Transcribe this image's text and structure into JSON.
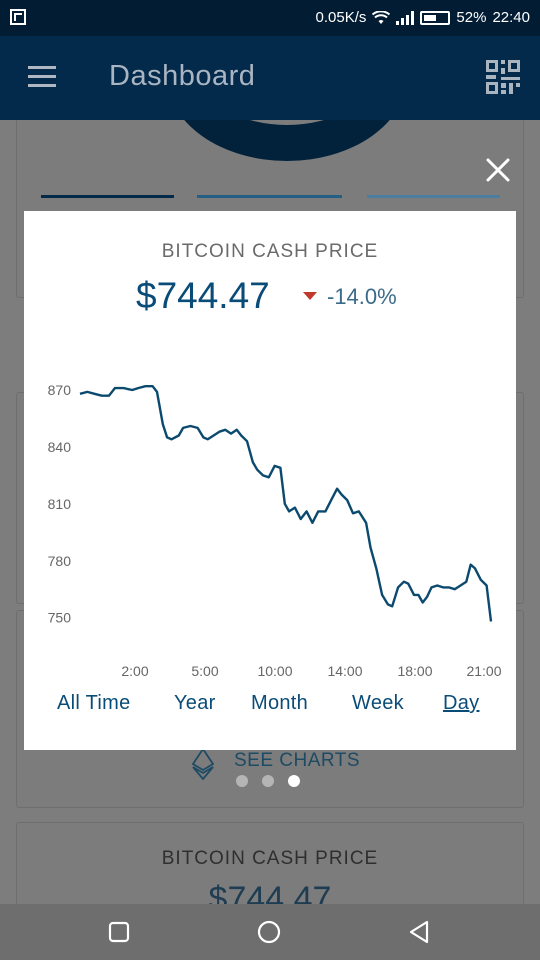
{
  "status_bar": {
    "speed": "0.05K/s",
    "battery": "52%",
    "time": "22:40",
    "battery_level": 0.52
  },
  "app_bar": {
    "title": "Dashboard"
  },
  "background": {
    "see_charts_label": "SEE CHARTS",
    "card_title": "BITCOIN CASH PRICE",
    "card_price": "$744.47",
    "pager_active_index": 2
  },
  "dialog": {
    "title": "BITCOIN CASH PRICE",
    "price": "$744.47",
    "change": "-14.0%",
    "change_direction": "down",
    "tabs": [
      {
        "label": "All Time",
        "active": false
      },
      {
        "label": "Year",
        "active": false
      },
      {
        "label": "Month",
        "active": false
      },
      {
        "label": "Week",
        "active": false
      },
      {
        "label": "Day",
        "active": true
      }
    ]
  },
  "colors": {
    "accent": "#0a4c78",
    "line": "#0b4a6e",
    "down": "#c0392b",
    "app_bar": "#032a4a"
  },
  "chart_data": {
    "type": "line",
    "x_tick_labels": [
      "2:00",
      "5:00",
      "10:00",
      "14:00",
      "18:00",
      "21:00"
    ],
    "y_tick_labels": [
      "870",
      "840",
      "810",
      "780",
      "750"
    ],
    "y_ticks": [
      870,
      840,
      810,
      780,
      750
    ],
    "ylim": [
      743,
      880
    ],
    "x_range_hours": [
      0,
      23
    ],
    "grid": false,
    "series": [
      {
        "values": [
          [
            0.0,
            868
          ],
          [
            0.5,
            869
          ],
          [
            1.0,
            868
          ],
          [
            1.5,
            867
          ],
          [
            2.0,
            867
          ],
          [
            2.4,
            871
          ],
          [
            3.0,
            871
          ],
          [
            3.6,
            870
          ],
          [
            4.0,
            871
          ],
          [
            4.5,
            872
          ],
          [
            5.0,
            872
          ],
          [
            5.3,
            869
          ],
          [
            5.7,
            852
          ],
          [
            6.0,
            845
          ],
          [
            6.3,
            844
          ],
          [
            6.8,
            846
          ],
          [
            7.1,
            850
          ],
          [
            7.6,
            851
          ],
          [
            8.1,
            850
          ],
          [
            8.5,
            845
          ],
          [
            8.8,
            844
          ],
          [
            9.2,
            846
          ],
          [
            9.6,
            848
          ],
          [
            10.0,
            849
          ],
          [
            10.4,
            847
          ],
          [
            10.8,
            849
          ],
          [
            11.1,
            846
          ],
          [
            11.5,
            843
          ],
          [
            11.9,
            832
          ],
          [
            12.2,
            828
          ],
          [
            12.6,
            825
          ],
          [
            13.0,
            824
          ],
          [
            13.4,
            830
          ],
          [
            13.8,
            829
          ],
          [
            14.1,
            810
          ],
          [
            14.4,
            806
          ],
          [
            14.8,
            808
          ],
          [
            15.2,
            802
          ],
          [
            15.6,
            806
          ],
          [
            16.0,
            800
          ],
          [
            16.4,
            806
          ],
          [
            16.9,
            806
          ],
          [
            17.3,
            812
          ],
          [
            17.7,
            818
          ],
          [
            18.0,
            815
          ],
          [
            18.4,
            812
          ],
          [
            18.8,
            805
          ],
          [
            19.2,
            806
          ],
          [
            19.7,
            800
          ],
          [
            20.0,
            787
          ],
          [
            20.4,
            776
          ],
          [
            20.8,
            762
          ],
          [
            21.2,
            757
          ],
          [
            21.5,
            756
          ],
          [
            21.9,
            766
          ],
          [
            22.3,
            769
          ],
          [
            22.6,
            768
          ],
          [
            23.0,
            762
          ],
          [
            23.3,
            762
          ],
          [
            23.6,
            758
          ],
          [
            23.9,
            761
          ],
          [
            24.2,
            766
          ],
          [
            24.6,
            767
          ],
          [
            25.0,
            766
          ],
          [
            25.4,
            766
          ],
          [
            25.8,
            765
          ],
          [
            26.2,
            767
          ],
          [
            26.6,
            769
          ],
          [
            26.9,
            778
          ],
          [
            27.2,
            776
          ],
          [
            27.6,
            770
          ],
          [
            28.0,
            767
          ],
          [
            28.3,
            748
          ]
        ]
      }
    ]
  }
}
